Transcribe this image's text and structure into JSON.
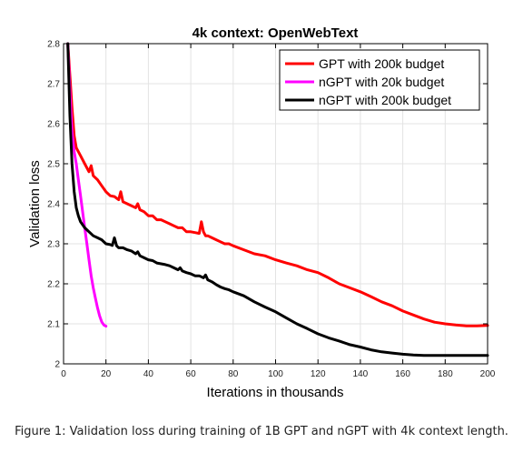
{
  "caption": "Figure 1: Validation loss during training of 1B GPT and nGPT with 4k context length.",
  "chart_data": {
    "type": "line",
    "title": "4k context: OpenWebText",
    "xlabel": "Iterations in thousands",
    "ylabel": "Validation loss",
    "xlim": [
      0,
      200
    ],
    "ylim": [
      2,
      2.8
    ],
    "xticks": [
      0,
      20,
      40,
      60,
      80,
      100,
      120,
      140,
      160,
      180,
      200
    ],
    "yticks": [
      2,
      2.1,
      2.2,
      2.3,
      2.4,
      2.5,
      2.6,
      2.7,
      2.8
    ],
    "ytick_labels": [
      "2",
      "2.1",
      "2.2",
      "2.3",
      "2.4",
      "2.5",
      "2.6",
      "2.7",
      "2.8"
    ],
    "grid": true,
    "legend_position": "top-right",
    "series": [
      {
        "name": "GPT with 200k budget",
        "color": "#ff0000",
        "x": [
          2,
          3,
          4,
          5,
          6,
          8,
          10,
          12,
          13,
          14,
          16,
          18,
          20,
          22,
          24,
          26,
          27,
          28,
          30,
          32,
          34,
          35,
          36,
          38,
          40,
          42,
          44,
          46,
          48,
          50,
          52,
          54,
          56,
          58,
          60,
          62,
          64,
          65,
          66,
          67,
          68,
          70,
          72,
          74,
          76,
          78,
          80,
          85,
          90,
          95,
          100,
          105,
          110,
          115,
          120,
          125,
          130,
          135,
          140,
          145,
          150,
          155,
          160,
          165,
          170,
          175,
          180,
          185,
          190,
          195,
          200
        ],
        "values": [
          2.8,
          2.72,
          2.64,
          2.57,
          2.54,
          2.52,
          2.5,
          2.48,
          2.495,
          2.47,
          2.46,
          2.445,
          2.43,
          2.42,
          2.418,
          2.41,
          2.43,
          2.405,
          2.4,
          2.395,
          2.39,
          2.4,
          2.385,
          2.38,
          2.37,
          2.37,
          2.36,
          2.36,
          2.355,
          2.35,
          2.345,
          2.34,
          2.34,
          2.33,
          2.33,
          2.328,
          2.326,
          2.355,
          2.33,
          2.32,
          2.32,
          2.315,
          2.31,
          2.305,
          2.3,
          2.3,
          2.295,
          2.285,
          2.275,
          2.27,
          2.26,
          2.252,
          2.245,
          2.235,
          2.228,
          2.215,
          2.2,
          2.19,
          2.18,
          2.168,
          2.155,
          2.145,
          2.132,
          2.122,
          2.112,
          2.104,
          2.1,
          2.097,
          2.095,
          2.095,
          2.096
        ]
      },
      {
        "name": "nGPT with 20k budget",
        "color": "#ff00ff",
        "x": [
          2,
          3,
          4,
          5,
          6,
          7,
          8,
          9,
          10,
          11,
          12,
          13,
          14,
          15,
          16,
          17,
          18,
          19,
          20
        ],
        "values": [
          2.8,
          2.68,
          2.58,
          2.53,
          2.5,
          2.46,
          2.42,
          2.38,
          2.34,
          2.3,
          2.26,
          2.22,
          2.19,
          2.165,
          2.14,
          2.12,
          2.105,
          2.097,
          2.094
        ]
      },
      {
        "name": "nGPT with 200k budget",
        "color": "#000000",
        "x": [
          2,
          3,
          4,
          5,
          6,
          7,
          8,
          10,
          12,
          14,
          16,
          18,
          20,
          22,
          23,
          24,
          25,
          26,
          28,
          30,
          32,
          34,
          35,
          36,
          38,
          40,
          42,
          44,
          46,
          48,
          50,
          52,
          54,
          55,
          56,
          58,
          60,
          62,
          64,
          66,
          67,
          68,
          70,
          72,
          74,
          76,
          78,
          80,
          85,
          90,
          95,
          100,
          105,
          110,
          115,
          120,
          125,
          130,
          135,
          140,
          145,
          150,
          155,
          160,
          165,
          170,
          175,
          180,
          185,
          190,
          195,
          200
        ],
        "values": [
          2.8,
          2.62,
          2.5,
          2.43,
          2.39,
          2.37,
          2.355,
          2.34,
          2.33,
          2.32,
          2.315,
          2.31,
          2.3,
          2.298,
          2.296,
          2.315,
          2.295,
          2.29,
          2.29,
          2.285,
          2.282,
          2.275,
          2.28,
          2.27,
          2.265,
          2.26,
          2.258,
          2.252,
          2.25,
          2.248,
          2.245,
          2.24,
          2.235,
          2.24,
          2.232,
          2.228,
          2.225,
          2.22,
          2.22,
          2.215,
          2.222,
          2.21,
          2.205,
          2.198,
          2.192,
          2.188,
          2.185,
          2.18,
          2.17,
          2.155,
          2.142,
          2.13,
          2.115,
          2.1,
          2.088,
          2.075,
          2.065,
          2.057,
          2.048,
          2.042,
          2.035,
          2.03,
          2.027,
          2.024,
          2.022,
          2.021,
          2.021,
          2.021,
          2.021,
          2.021,
          2.021,
          2.021
        ]
      }
    ]
  }
}
